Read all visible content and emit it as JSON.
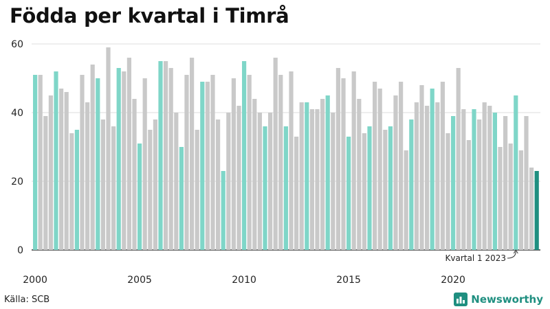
{
  "title": "Födda per kvartal i Timrå",
  "source": "Källa: SCB",
  "brand": "Newsworthy",
  "colors": {
    "q1": "#7fd6c8",
    "other": "#c9c9c9",
    "latest": "#1f8f80",
    "grid": "#dddddd",
    "axis": "#333333",
    "brand": "#1f8f80"
  },
  "chart_data": {
    "type": "bar",
    "title": "Födda per kvartal i Timrå",
    "xlabel": "",
    "ylabel": "",
    "ylim": [
      0,
      60
    ],
    "yticks": [
      0,
      20,
      40,
      60
    ],
    "start_year": 2000,
    "xticks": [
      "2000",
      "2005",
      "2010",
      "2015",
      "2020"
    ],
    "legend": "none",
    "highlight": "Kvartal 1 highlighted; latest quarter in dark green",
    "values": [
      51,
      51,
      39,
      45,
      52,
      47,
      46,
      34,
      35,
      51,
      43,
      54,
      50,
      38,
      59,
      36,
      53,
      52,
      56,
      44,
      31,
      50,
      35,
      38,
      55,
      55,
      53,
      40,
      30,
      51,
      56,
      35,
      49,
      49,
      51,
      38,
      23,
      40,
      50,
      42,
      55,
      51,
      44,
      40,
      36,
      40,
      56,
      51,
      36,
      52,
      33,
      43,
      43,
      41,
      41,
      44,
      45,
      40,
      53,
      50,
      33,
      52,
      44,
      34,
      36,
      49,
      47,
      35,
      36,
      45,
      49,
      29,
      38,
      43,
      48,
      42,
      47,
      43,
      49,
      34,
      39,
      53,
      41,
      32,
      41,
      38,
      43,
      42,
      40,
      30,
      39,
      31,
      45,
      29,
      39,
      24,
      23
    ],
    "annotation": "Kvartal 1 2023"
  }
}
